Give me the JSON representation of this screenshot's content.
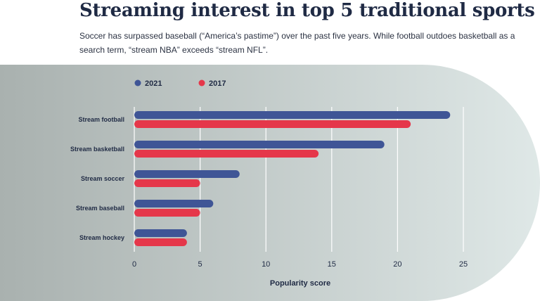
{
  "header": {
    "title": "Streaming interest in top 5 traditional sports",
    "subtitle": "Soccer has surpassed baseball (“America’s pastime”) over the past five years. While football outdoes basketball as a search term, “stream NBA” exceeds “stream NFL”."
  },
  "colors": {
    "series_2021": "#3f5596",
    "series_2017": "#e5374a",
    "panel_left": "#a9b1af",
    "panel_right": "#dfe8e7"
  },
  "chart_data": {
    "type": "bar",
    "orientation": "horizontal",
    "categories": [
      "Stream football",
      "Stream basketball",
      "Stream soccer",
      "Stream baseball",
      "Stream hockey"
    ],
    "series": [
      {
        "name": "2021",
        "values": [
          24,
          19,
          8,
          6,
          4
        ]
      },
      {
        "name": "2017",
        "values": [
          21,
          14,
          5,
          5,
          4
        ]
      }
    ],
    "xlabel": "Popularity score",
    "ylabel": "",
    "xlim": [
      0,
      25
    ],
    "xticks": [
      0,
      5,
      10,
      15,
      20,
      25
    ],
    "grid": true,
    "legend": "top-left"
  }
}
